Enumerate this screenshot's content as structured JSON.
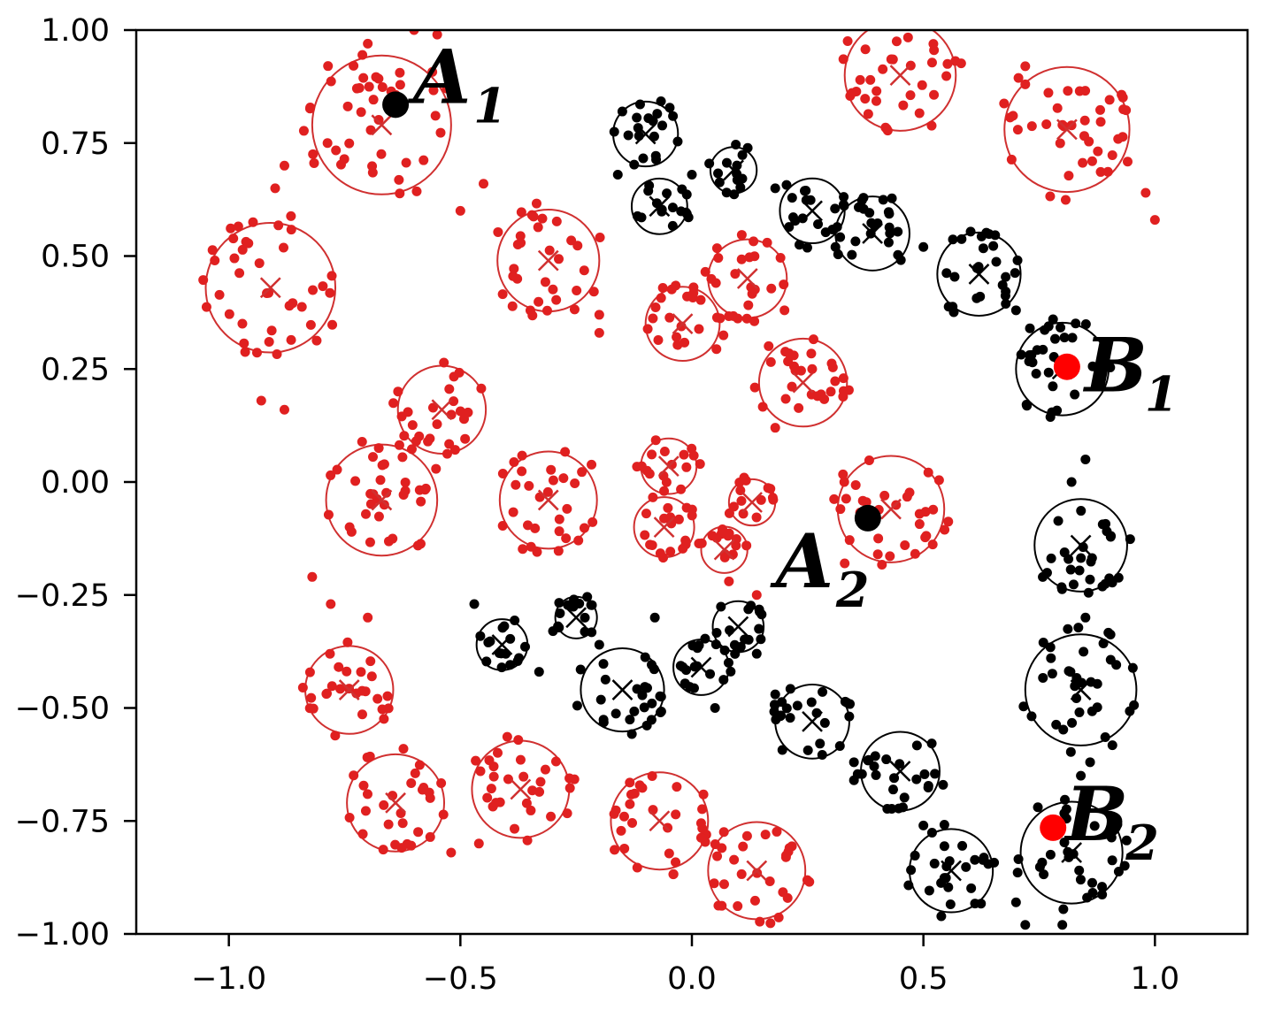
{
  "chart_data": {
    "type": "scatter",
    "title": "",
    "xlabel": "",
    "ylabel": "",
    "xlim": [
      -1.2,
      1.2
    ],
    "ylim": [
      -1.0,
      1.0
    ],
    "grid": false,
    "legend": "none",
    "xticks": [
      -1.0,
      -0.5,
      0.0,
      0.5,
      1.0
    ],
    "xtick_labels": [
      "−1.0",
      "−0.5",
      "0.0",
      "0.5",
      "1.0"
    ],
    "yticks": [
      1.0,
      0.75,
      0.5,
      0.25,
      0.0,
      -0.25,
      -0.5,
      -0.75,
      -1.0
    ],
    "ytick_labels": [
      "1.00",
      "0.75",
      "0.50",
      "0.25",
      "0.00",
      "−0.25",
      "−0.50",
      "−0.75",
      "−1.00"
    ],
    "colors": {
      "red": "#e02020",
      "black": "#000000",
      "red_circle": "#d03030",
      "highlight_red": "#ff0000"
    },
    "clusters": [
      {
        "class": "red",
        "center": [
          -0.67,
          0.79
        ],
        "radius": 0.15
      },
      {
        "class": "red",
        "center": [
          -0.91,
          0.43
        ],
        "radius": 0.14
      },
      {
        "class": "red",
        "center": [
          -0.31,
          0.49
        ],
        "radius": 0.11
      },
      {
        "class": "red",
        "center": [
          0.12,
          0.45
        ],
        "radius": 0.085
      },
      {
        "class": "red",
        "center": [
          -0.02,
          0.35
        ],
        "radius": 0.08
      },
      {
        "class": "red",
        "center": [
          0.24,
          0.22
        ],
        "radius": 0.095
      },
      {
        "class": "red",
        "center": [
          -0.54,
          0.16
        ],
        "radius": 0.095
      },
      {
        "class": "red",
        "center": [
          -0.67,
          -0.04
        ],
        "radius": 0.12
      },
      {
        "class": "red",
        "center": [
          -0.31,
          -0.04
        ],
        "radius": 0.105
      },
      {
        "class": "red",
        "center": [
          -0.05,
          0.035
        ],
        "radius": 0.06
      },
      {
        "class": "red",
        "center": [
          0.13,
          -0.045
        ],
        "radius": 0.05
      },
      {
        "class": "red",
        "center": [
          -0.06,
          -0.1
        ],
        "radius": 0.065
      },
      {
        "class": "red",
        "center": [
          0.07,
          -0.15
        ],
        "radius": 0.05
      },
      {
        "class": "red",
        "center": [
          0.43,
          -0.06
        ],
        "radius": 0.115
      },
      {
        "class": "red",
        "center": [
          -0.74,
          -0.46
        ],
        "radius": 0.095
      },
      {
        "class": "red",
        "center": [
          -0.64,
          -0.71
        ],
        "radius": 0.105
      },
      {
        "class": "red",
        "center": [
          -0.37,
          -0.68
        ],
        "radius": 0.105
      },
      {
        "class": "red",
        "center": [
          -0.07,
          -0.75
        ],
        "radius": 0.105
      },
      {
        "class": "red",
        "center": [
          0.14,
          -0.86
        ],
        "radius": 0.105
      },
      {
        "class": "red",
        "center": [
          0.45,
          0.9
        ],
        "radius": 0.12
      },
      {
        "class": "red",
        "center": [
          0.81,
          0.78
        ],
        "radius": 0.135
      },
      {
        "class": "black",
        "center": [
          -0.1,
          0.77
        ],
        "radius": 0.07
      },
      {
        "class": "black",
        "center": [
          -0.07,
          0.61
        ],
        "radius": 0.06
      },
      {
        "class": "black",
        "center": [
          0.09,
          0.69
        ],
        "radius": 0.05
      },
      {
        "class": "black",
        "center": [
          0.26,
          0.6
        ],
        "radius": 0.07
      },
      {
        "class": "black",
        "center": [
          0.39,
          0.55
        ],
        "radius": 0.08
      },
      {
        "class": "black",
        "center": [
          0.62,
          0.46
        ],
        "radius": 0.09
      },
      {
        "class": "black",
        "center": [
          0.8,
          0.25
        ],
        "radius": 0.1
      },
      {
        "class": "black",
        "center": [
          0.84,
          -0.14
        ],
        "radius": 0.1
      },
      {
        "class": "black",
        "center": [
          0.84,
          -0.46
        ],
        "radius": 0.12
      },
      {
        "class": "black",
        "center": [
          0.82,
          -0.82
        ],
        "radius": 0.11
      },
      {
        "class": "black",
        "center": [
          0.56,
          -0.86
        ],
        "radius": 0.09
      },
      {
        "class": "black",
        "center": [
          0.45,
          -0.64
        ],
        "radius": 0.085
      },
      {
        "class": "black",
        "center": [
          0.26,
          -0.53
        ],
        "radius": 0.08
      },
      {
        "class": "black",
        "center": [
          0.1,
          -0.32
        ],
        "radius": 0.055
      },
      {
        "class": "black",
        "center": [
          0.02,
          -0.41
        ],
        "radius": 0.06
      },
      {
        "class": "black",
        "center": [
          -0.15,
          -0.46
        ],
        "radius": 0.09
      },
      {
        "class": "black",
        "center": [
          -0.25,
          -0.3
        ],
        "radius": 0.045
      },
      {
        "class": "black",
        "center": [
          -0.41,
          -0.36
        ],
        "radius": 0.055
      }
    ],
    "highlight_points": [
      {
        "label": "A",
        "subscript": "1",
        "x": -0.64,
        "y": 0.835,
        "color": "#000000"
      },
      {
        "label": "A",
        "subscript": "2",
        "x": 0.38,
        "y": -0.08,
        "color": "#000000"
      },
      {
        "label": "B",
        "subscript": "1",
        "x": 0.81,
        "y": 0.255,
        "color": "#ff0000"
      },
      {
        "label": "B",
        "subscript": "2",
        "x": 0.78,
        "y": -0.765,
        "color": "#ff0000"
      }
    ]
  }
}
